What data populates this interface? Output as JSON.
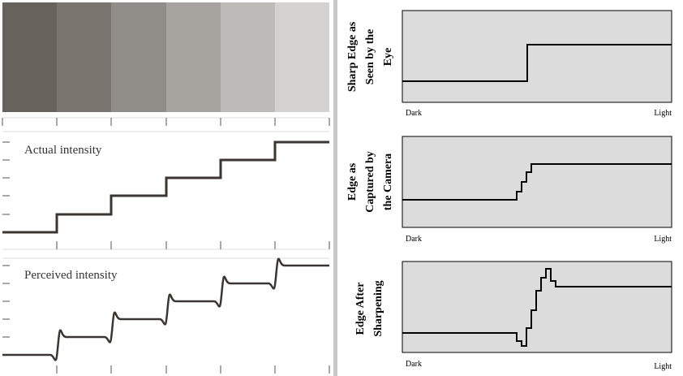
{
  "left": {
    "actual_label": "Actual intensity",
    "perceived_label": "Perceived intensity"
  },
  "right": {
    "panels": [
      {
        "lines": [
          "Sharp Edge as",
          "Seen by the",
          "Eye"
        ],
        "dark": "Dark",
        "light": "Light"
      },
      {
        "lines": [
          "Edge as",
          "Captured by",
          "the Camera"
        ],
        "dark": "Dark",
        "light": "Light"
      },
      {
        "lines": [
          "Edge After",
          "Sharpening"
        ],
        "dark": "Dark",
        "light": "Light"
      }
    ]
  }
}
